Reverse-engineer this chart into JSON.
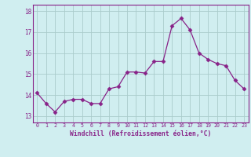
{
  "x": [
    0,
    1,
    2,
    3,
    4,
    5,
    6,
    7,
    8,
    9,
    10,
    11,
    12,
    13,
    14,
    15,
    16,
    17,
    18,
    19,
    20,
    21,
    22,
    23
  ],
  "y": [
    14.1,
    13.6,
    13.2,
    13.7,
    13.8,
    13.8,
    13.6,
    13.6,
    14.3,
    14.4,
    15.1,
    15.1,
    15.05,
    15.6,
    15.6,
    17.3,
    17.65,
    17.1,
    16.0,
    15.7,
    15.5,
    15.4,
    14.7,
    14.3
  ],
  "line_color": "#882288",
  "marker": "D",
  "marker_size": 2.5,
  "bg_color": "#d0eef0",
  "grid_color": "#aacccc",
  "tick_label_color": "#882288",
  "xlabel": "Windchill (Refroidissement éolien,°C)",
  "xlabel_color": "#882288",
  "ylim": [
    12.7,
    18.3
  ],
  "yticks": [
    13,
    14,
    15,
    16,
    17,
    18
  ],
  "xlim": [
    -0.5,
    23.5
  ]
}
